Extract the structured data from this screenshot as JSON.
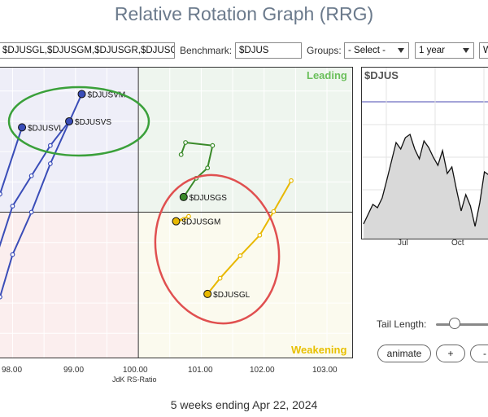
{
  "page": {
    "title": "Relative Rotation Graph (RRG)"
  },
  "toolbar": {
    "symbols_value": "$DJUSGL,$DJUSGM,$DJUSGR,$DJUSGS",
    "benchmark_label": "Benchmark:",
    "benchmark_value": "$DJUS",
    "groups_label": "Groups:",
    "groups_value": "- Select -",
    "period_value": "1 year",
    "extra_value": "W"
  },
  "plot": {
    "quadrants": {
      "leading": "Leading",
      "weakening": "Weakening"
    },
    "xlabel": "JdK RS-Ratio",
    "xticks": [
      "98.00",
      "99.00",
      "100.00",
      "101.00",
      "102.00",
      "103.00"
    ],
    "colors": {
      "leading_bg": "#eef5ee",
      "weakening_bg": "#fbfaee",
      "lagging_bg": "#fbeeee",
      "improving_bg": "#eeeef8",
      "blue": "#3a4db8",
      "green": "#3a8a2a",
      "yellow": "#e8b800",
      "circle_green": "#3aa03a",
      "circle_red": "#e05050"
    },
    "series": [
      {
        "name": "$DJUSVM",
        "color": "blue"
      },
      {
        "name": "$DJUSVS",
        "color": "blue"
      },
      {
        "name": "$DJUSVL",
        "color": "blue"
      },
      {
        "name": "$DJUSGS",
        "color": "green"
      },
      {
        "name": "$DJUSGM",
        "color": "yellow"
      },
      {
        "name": "$DJUSGL",
        "color": "yellow"
      }
    ]
  },
  "chart_data": {
    "type": "scatter",
    "xlabel": "JdK RS-Ratio",
    "xlim": [
      97.8,
      103.4
    ],
    "ylim": [
      97.6,
      102.4
    ],
    "center": [
      100,
      100
    ],
    "series": [
      {
        "name": "$DJUSVM",
        "x": [
          97.55,
          97.65,
          97.8,
          98.0,
          98.3,
          98.6,
          99.1
        ],
        "y": [
          97.7,
          98.1,
          98.6,
          99.3,
          100.0,
          100.8,
          101.95
        ]
      },
      {
        "name": "$DJUSVS",
        "x": [
          97.6,
          97.75,
          98.0,
          98.3,
          98.6,
          98.9
        ],
        "y": [
          98.6,
          99.3,
          100.1,
          100.6,
          101.1,
          101.5
        ]
      },
      {
        "name": "$DJUSVL",
        "x": [
          97.55,
          97.8,
          98.15
        ],
        "y": [
          99.2,
          100.3,
          101.4
        ]
      },
      {
        "name": "$DJUSGS",
        "x": [
          100.68,
          100.75,
          101.18,
          101.1,
          100.92,
          100.72
        ],
        "y": [
          100.95,
          101.15,
          101.1,
          100.73,
          100.56,
          100.25
        ]
      },
      {
        "name": "$DJUSGM",
        "x": [
          100.72,
          100.62,
          100.8,
          100.6
        ],
        "y": [
          99.88,
          99.85,
          99.93,
          99.85
        ]
      },
      {
        "name": "$DJUSGL",
        "x": [
          102.43,
          102.15,
          101.93,
          101.62,
          101.3,
          101.1
        ],
        "y": [
          100.52,
          100.01,
          99.62,
          99.28,
          98.91,
          98.65
        ]
      }
    ]
  },
  "mini_chart": {
    "title": "$DJUS",
    "xticks": [
      "Jul",
      "Oct"
    ],
    "values": [
      18,
      30,
      42,
      38,
      50,
      72,
      95,
      118,
      110,
      124,
      128,
      110,
      98,
      120,
      112,
      100,
      90,
      108,
      80,
      88,
      60,
      34,
      54,
      40,
      15,
      44,
      82,
      78,
      100
    ]
  },
  "controls": {
    "tail_length_label": "Tail Length:",
    "tail_length_value": 0.3,
    "animate_label": "animate",
    "plus_label": "+",
    "minus_label": "-"
  },
  "footer": {
    "text": "5 weeks ending Apr 22, 2024"
  }
}
